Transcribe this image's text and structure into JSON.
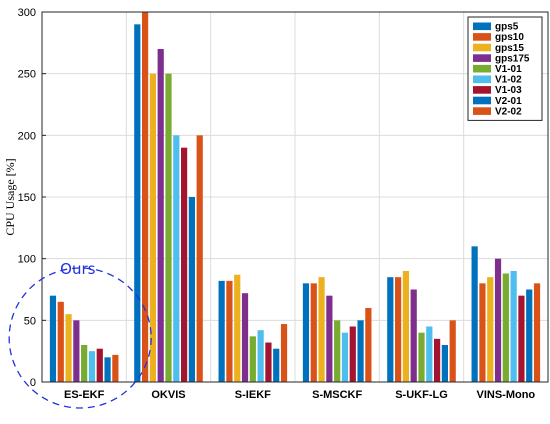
{
  "chart_data": {
    "type": "bar",
    "ylabel": "CPU Usage [%]",
    "ylim": [
      0,
      300
    ],
    "yticks": [
      0,
      50,
      100,
      150,
      200,
      250,
      300
    ],
    "grid": true,
    "legend_position": "top-right",
    "categories": [
      "ES-EKF",
      "OKVIS",
      "S-IEKF",
      "S-MSCKF",
      "S-UKF-LG",
      "VINS-Mono"
    ],
    "series": [
      {
        "name": "gps5",
        "color": "#0072bd",
        "values": [
          70,
          290,
          82,
          80,
          85,
          110
        ]
      },
      {
        "name": "gps10",
        "color": "#d95319",
        "values": [
          65,
          300,
          82,
          80,
          85,
          80
        ]
      },
      {
        "name": "gps15",
        "color": "#edb120",
        "values": [
          55,
          250,
          87,
          85,
          90,
          85
        ]
      },
      {
        "name": "gps175",
        "color": "#7e2f8e",
        "values": [
          50,
          270,
          72,
          70,
          75,
          100
        ]
      },
      {
        "name": "V1-01",
        "color": "#77ac30",
        "values": [
          30,
          250,
          37,
          50,
          40,
          88
        ]
      },
      {
        "name": "V1-02",
        "color": "#4dbeee",
        "values": [
          25,
          200,
          42,
          40,
          45,
          90
        ]
      },
      {
        "name": "V1-03",
        "color": "#a2142f",
        "values": [
          27,
          190,
          32,
          45,
          35,
          70
        ]
      },
      {
        "name": "V2-01",
        "color": "#0072bd",
        "values": [
          20,
          150,
          27,
          50,
          30,
          75
        ]
      },
      {
        "name": "V2-02",
        "color": "#d95319",
        "values": [
          22,
          200,
          47,
          60,
          50,
          80
        ]
      }
    ],
    "annotation": {
      "text": "Ours",
      "target_category": "ES-EKF",
      "color": "#2233dd"
    }
  }
}
